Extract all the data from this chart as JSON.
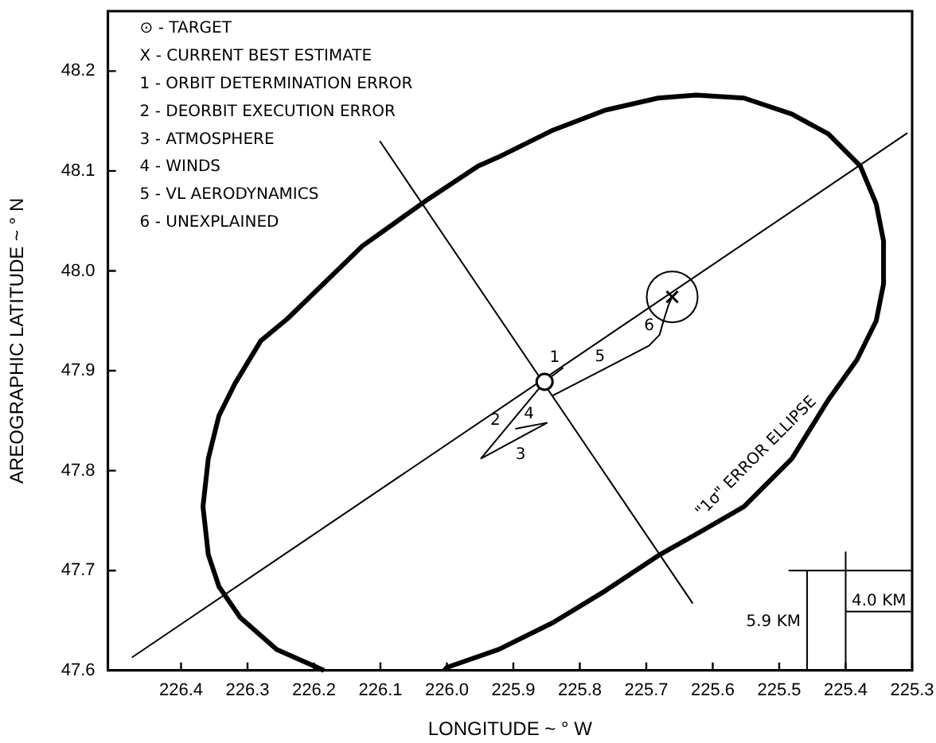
{
  "chart_data": {
    "type": "line",
    "xlabel": "LONGITUDE ~ ° W",
    "ylabel": "AREOGRAPHIC LATITUDE ~ ° N",
    "xlim": [
      226.51,
      225.3
    ],
    "xticks": [
      226.4,
      226.3,
      226.2,
      226.1,
      {
        "value": 226,
        "label": "226.0"
      },
      225.9,
      225.8,
      225.7,
      225.6,
      225.5,
      225.4,
      225.3
    ],
    "ylim": [
      47.6,
      48.26
    ],
    "yticks": [
      47.6,
      47.7,
      47.8,
      47.9,
      {
        "value": 48,
        "label": "48.0"
      },
      48.1,
      48.2
    ],
    "grid": false,
    "legend": false,
    "marker": "none",
    "line_style": "solid",
    "series": [
      {
        "type": "line",
        "color": "#000000",
        "x": [
          226.185,
          226.256,
          226.311,
          226.343,
          226.359,
          226.367,
          226.359,
          226.343,
          226.319,
          226.28,
          226.24,
          226.127,
          226.032,
          225.953,
          225.922,
          225.84,
          225.761,
          225.682,
          225.625,
          225.553,
          225.481,
          225.426,
          225.378,
          225.354,
          225.343,
          225.343,
          225.354,
          225.383,
          225.426,
          225.481,
          225.553,
          225.618,
          225.682,
          225.761,
          225.84,
          225.922,
          226.0,
          226.004
        ],
        "values": [
          47.6,
          47.621,
          47.653,
          47.684,
          47.716,
          47.764,
          47.812,
          47.855,
          47.887,
          47.93,
          47.952,
          48.025,
          48.07,
          48.105,
          48.114,
          48.141,
          48.161,
          48.173,
          48.176,
          48.173,
          48.157,
          48.137,
          48.105,
          48.067,
          48.03,
          47.987,
          47.95,
          47.911,
          47.871,
          47.812,
          47.764,
          47.739,
          47.715,
          47.68,
          47.648,
          47.621,
          47.603,
          47.6
        ]
      },
      {
        "type": "line",
        "color": "#000000",
        "x": [
          226.474,
          225.307
        ],
        "values": [
          47.613,
          48.138
        ]
      },
      {
        "type": "line",
        "color": "#000000",
        "x": [
          226.101,
          225.63
        ],
        "values": [
          48.13,
          47.667
        ]
      },
      {
        "type": "line",
        "color": "#000000",
        "x": [
          225.853,
          225.825
        ],
        "values": [
          47.889,
          47.903
        ]
      },
      {
        "type": "line",
        "color": "#000000",
        "x": [
          225.853,
          225.949
        ],
        "values": [
          47.889,
          47.812
        ]
      },
      {
        "type": "line",
        "color": "#000000",
        "x": [
          225.949,
          225.849
        ],
        "values": [
          47.812,
          47.848
        ]
      },
      {
        "type": "line",
        "color": "#000000",
        "x": [
          225.849,
          225.897
        ],
        "values": [
          47.848,
          47.842
        ]
      },
      {
        "type": "line",
        "color": "#000000",
        "x": [
          225.841,
          225.696,
          225.68,
          225.674,
          225.667,
          225.661
        ],
        "values": [
          47.875,
          47.925,
          47.936,
          47.95,
          47.965,
          47.974
        ]
      },
      {
        "type": "line",
        "color": "#000000",
        "x": [
          225.4,
          225.4
        ],
        "values": [
          47.6,
          47.719
        ]
      },
      {
        "type": "line",
        "color": "#000000",
        "x": [
          225.486,
          225.3
        ],
        "values": [
          47.7,
          47.7
        ]
      },
      {
        "type": "line",
        "color": "#000000",
        "x": [
          225.458,
          225.458
        ],
        "values": [
          47.6,
          47.7
        ]
      },
      {
        "type": "line",
        "color": "#000000",
        "x": [
          225.4,
          225.3
        ],
        "values": [
          47.659,
          47.659
        ]
      },
      {
        "type": "scatter",
        "color": "#000000",
        "marker": "circle",
        "x": [
          225.853
        ],
        "values": [
          47.889
        ]
      },
      {
        "type": "bubble",
        "color": "#000000",
        "marker": "circle",
        "x": [
          225.661
        ],
        "values": [
          47.974
        ],
        "sizes": [
          1
        ]
      },
      {
        "type": "scatter",
        "color": "#000000",
        "marker": "cross",
        "x": [
          225.661
        ],
        "values": [
          47.974
        ]
      }
    ],
    "annotations": [
      "⊙ - TARGET",
      "X - CURRENT BEST ESTIMATE",
      "1 - ORBIT DETERMINATION ERROR",
      "2 - DEORBIT EXECUTION ERROR",
      "3 - ATMOSPHERE",
      "4 - WINDS",
      "5 - VL AERODYNAMICS",
      "6 - UNEXPLAINED",
      {
        "text": "1",
        "x": 225.825,
        "y": 47.903
      },
      {
        "text": "2",
        "x": 225.911,
        "y": 47.843
      },
      {
        "text": "3",
        "x": 225.899,
        "y": 47.83
      },
      {
        "text": "4",
        "x": 225.873,
        "y": 47.845
      },
      {
        "text": "5",
        "x": 225.76,
        "y": 47.903
      },
      {
        "text": "6",
        "x": 225.677,
        "y": 47.943
      },
      {
        "text": "\"1σ\" ERROR ELLIPSE",
        "x": 225.506,
        "y": 47.795
      },
      {
        "text": "5.9 KM",
        "x": 225.458,
        "y": 47.65
      },
      {
        "text": "4.0 KM",
        "x": 225.35,
        "y": 47.659
      }
    ]
  }
}
